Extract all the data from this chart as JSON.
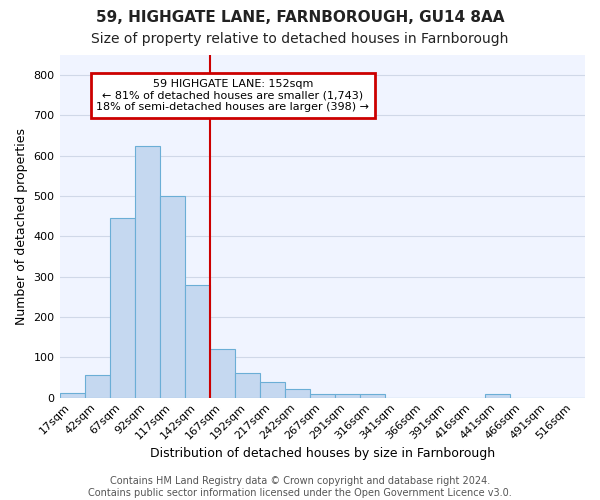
{
  "title1": "59, HIGHGATE LANE, FARNBOROUGH, GU14 8AA",
  "title2": "Size of property relative to detached houses in Farnborough",
  "xlabel": "Distribution of detached houses by size in Farnborough",
  "ylabel": "Number of detached properties",
  "bar_labels": [
    "17sqm",
    "42sqm",
    "67sqm",
    "92sqm",
    "117sqm",
    "142sqm",
    "167sqm",
    "192sqm",
    "217sqm",
    "242sqm",
    "267sqm",
    "291sqm",
    "316sqm",
    "341sqm",
    "366sqm",
    "391sqm",
    "416sqm",
    "441sqm",
    "466sqm",
    "491sqm",
    "516sqm"
  ],
  "bar_values": [
    12,
    55,
    445,
    625,
    500,
    280,
    120,
    62,
    38,
    22,
    10,
    10,
    8,
    0,
    0,
    0,
    0,
    8,
    0,
    0,
    0
  ],
  "bar_color": "#c5d8f0",
  "bar_edge_color": "#6baed6",
  "ylim": [
    0,
    850
  ],
  "yticks": [
    0,
    100,
    200,
    300,
    400,
    500,
    600,
    700,
    800
  ],
  "property_line_x": 5.5,
  "annotation_text": "59 HIGHGATE LANE: 152sqm\n← 81% of detached houses are smaller (1,743)\n18% of semi-detached houses are larger (398) →",
  "annotation_box_color": "#ffffff",
  "annotation_box_edge_color": "#cc0000",
  "line_color": "#cc0000",
  "background_color": "#ffffff",
  "plot_bg_color": "#f0f4ff",
  "grid_color": "#d0d8e8",
  "footer_text": "Contains HM Land Registry data © Crown copyright and database right 2024.\nContains public sector information licensed under the Open Government Licence v3.0.",
  "title1_fontsize": 11,
  "title2_fontsize": 10,
  "xlabel_fontsize": 9,
  "ylabel_fontsize": 9,
  "tick_fontsize": 8,
  "footer_fontsize": 7
}
